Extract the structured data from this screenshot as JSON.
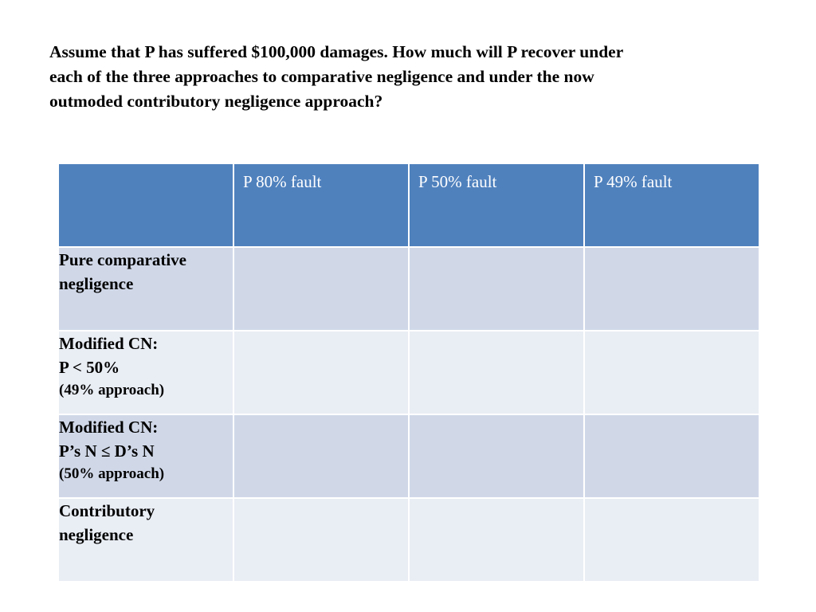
{
  "question": {
    "lines": [
      "Assume that P has suffered $100,000 damages.  How much will P recover under",
      "each of the three approaches to comparative negligence and under the now",
      "outmoded contributory negligence approach?"
    ]
  },
  "table": {
    "corner": "",
    "headers": [
      "P 80% fault",
      "P 50% fault",
      "P 49% fault"
    ],
    "rows": [
      {
        "label_lines": [
          "Pure comparative",
          "negligence"
        ],
        "cells": [
          "",
          "",
          ""
        ]
      },
      {
        "label_lines": [
          "Modified CN:",
          "P < 50%",
          "(49% approach)"
        ],
        "cells": [
          "",
          "",
          ""
        ]
      },
      {
        "label_lines": [
          "Modified CN:",
          "P’s N ≤ D’s N",
          "(50% approach)"
        ],
        "cells": [
          "",
          "",
          ""
        ]
      },
      {
        "label_lines": [
          "Contributory",
          "negligence"
        ],
        "cells": [
          "",
          "",
          ""
        ]
      }
    ]
  },
  "colors": {
    "header_fill": "#4f81bd",
    "row_fill_odd": "#d0d8e8",
    "row_fill_even": "#e9edf4",
    "header_text": "#ffffff"
  }
}
